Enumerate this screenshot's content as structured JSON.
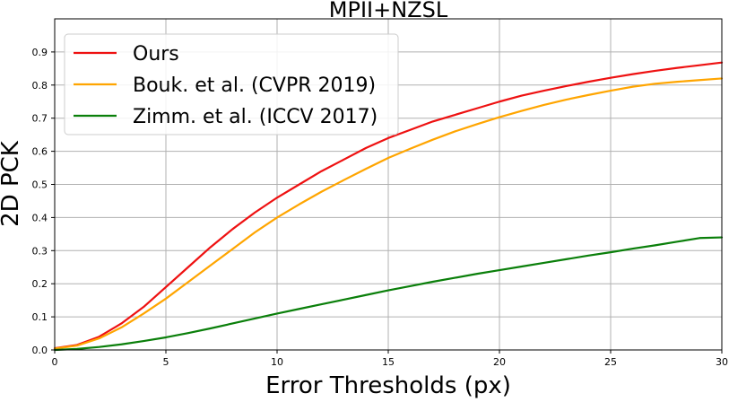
{
  "chart_data": {
    "type": "line",
    "title": "MPII+NZSL",
    "xlabel": "Error Thresholds (px)",
    "ylabel": "2D PCK",
    "xlim": [
      0,
      30
    ],
    "ylim": [
      0,
      1.0
    ],
    "xticks": [
      0,
      5,
      10,
      15,
      20,
      25,
      30
    ],
    "yticks": [
      0.0,
      0.1,
      0.2,
      0.3,
      0.4,
      0.5,
      0.6,
      0.7,
      0.8,
      0.9
    ],
    "ytick_labels": [
      "0.0",
      "0.1",
      "0.2",
      "0.3",
      "0.4",
      "0.5",
      "0.6",
      "0.7",
      "0.8",
      "0.9"
    ],
    "grid": true,
    "legend_position": "top-left",
    "x": [
      0,
      1,
      2,
      3,
      4,
      5,
      6,
      7,
      8,
      9,
      10,
      11,
      12,
      13,
      14,
      15,
      16,
      17,
      18,
      19,
      20,
      21,
      22,
      23,
      24,
      25,
      26,
      27,
      28,
      29,
      30
    ],
    "series": [
      {
        "name": "Ours",
        "color": "#ee1111",
        "values": [
          0.005,
          0.015,
          0.04,
          0.08,
          0.13,
          0.19,
          0.25,
          0.31,
          0.365,
          0.415,
          0.46,
          0.5,
          0.54,
          0.575,
          0.61,
          0.64,
          0.665,
          0.69,
          0.71,
          0.73,
          0.75,
          0.768,
          0.783,
          0.797,
          0.81,
          0.822,
          0.833,
          0.843,
          0.852,
          0.86,
          0.868
        ]
      },
      {
        "name": "Bouk. et al. (CVPR 2019)",
        "color": "#ffa500",
        "values": [
          0.004,
          0.013,
          0.035,
          0.068,
          0.11,
          0.155,
          0.205,
          0.255,
          0.305,
          0.355,
          0.4,
          0.44,
          0.478,
          0.513,
          0.547,
          0.58,
          0.608,
          0.635,
          0.66,
          0.682,
          0.703,
          0.722,
          0.74,
          0.756,
          0.77,
          0.783,
          0.795,
          0.804,
          0.81,
          0.815,
          0.82
        ]
      },
      {
        "name": "Zimm. et al. (ICCV 2017)",
        "color": "#0a7f0a",
        "values": [
          0.0,
          0.003,
          0.009,
          0.017,
          0.027,
          0.038,
          0.051,
          0.065,
          0.08,
          0.095,
          0.11,
          0.124,
          0.138,
          0.152,
          0.166,
          0.18,
          0.193,
          0.206,
          0.218,
          0.23,
          0.241,
          0.252,
          0.263,
          0.274,
          0.285,
          0.295,
          0.306,
          0.316,
          0.327,
          0.338,
          0.34
        ]
      }
    ]
  }
}
